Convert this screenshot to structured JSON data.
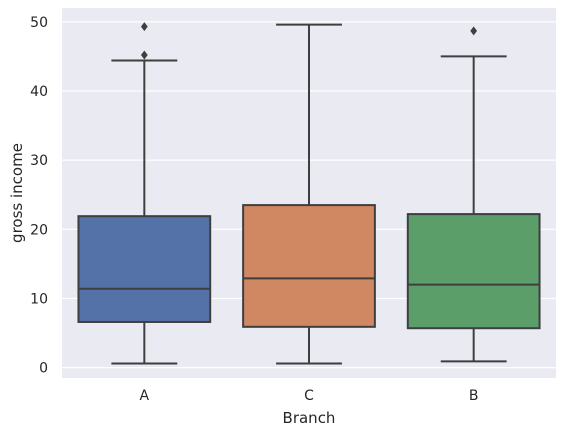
{
  "chart_data": {
    "type": "box",
    "xlabel": "Branch",
    "ylabel": "gross income",
    "categories": [
      "A",
      "C",
      "B"
    ],
    "ylim": [
      -1.5,
      52
    ],
    "yticks": [
      0,
      10,
      20,
      30,
      40,
      50
    ],
    "grid": true,
    "background_color": "#eaeaf2",
    "grid_color": "#ffffff",
    "line_color": "#3f3f3f",
    "boxes": [
      {
        "category": "A",
        "whisker_low": 0.6,
        "q1": 6.6,
        "median": 11.4,
        "q3": 21.9,
        "whisker_high": 44.4,
        "outliers": [
          45.2,
          49.3
        ],
        "color": "#5572a8"
      },
      {
        "category": "C",
        "whisker_low": 0.6,
        "q1": 5.9,
        "median": 12.9,
        "q3": 23.5,
        "whisker_high": 49.6,
        "outliers": [],
        "color": "#cf8862"
      },
      {
        "category": "B",
        "whisker_low": 0.9,
        "q1": 5.7,
        "median": 12.0,
        "q3": 22.2,
        "whisker_high": 45.0,
        "outliers": [
          48.7
        ],
        "color": "#5b9e6a"
      }
    ]
  }
}
